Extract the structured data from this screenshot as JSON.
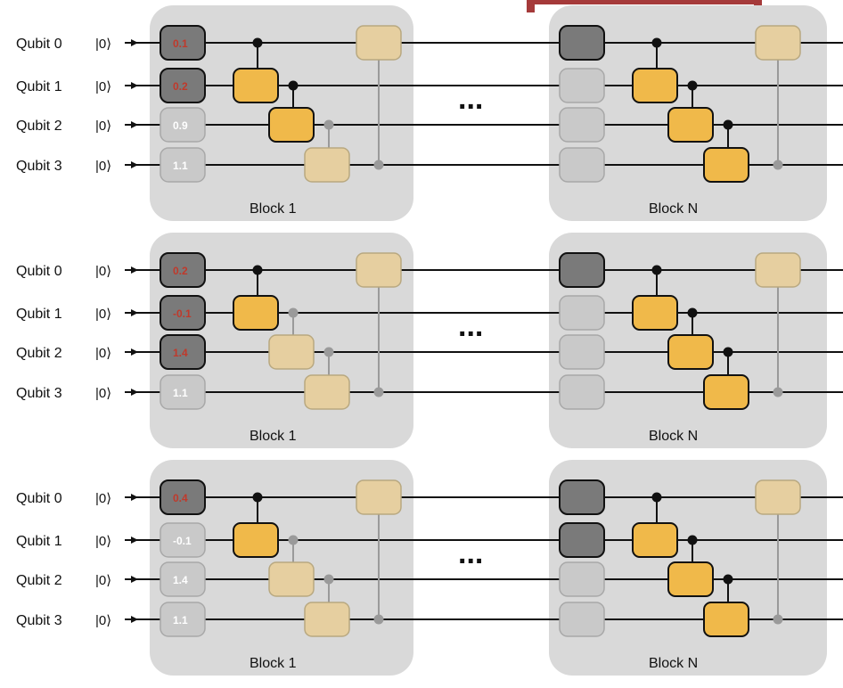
{
  "qubit_labels": [
    "Qubit 0",
    "Qubit 1",
    "Qubit 2",
    "Qubit 3"
  ],
  "initial_state": "|0⟩",
  "ellipsis": "...",
  "colors": {
    "panel": "#d9d9d9",
    "rot_active": "#7a7a7a",
    "rot_inactive": "#c9c9c9",
    "param_active_text": "#c0392b",
    "param_inactive_text": "#ffffff",
    "cz_active": "#f0b94a",
    "cz_inactive": "#e6cfa0",
    "wire": "#111111",
    "wire_inactive": "#9a9a9a",
    "top_bracket": "#a53a3a"
  },
  "circuits": [
    {
      "block1": {
        "label": "Block 1",
        "params": [
          "0.1",
          "0.2",
          "0.9",
          "1.1"
        ],
        "rot_active": [
          true,
          true,
          false,
          false
        ],
        "cz_active": [
          true,
          true,
          false
        ],
        "long_cz_active": false
      },
      "blockN": {
        "label": "Block N",
        "rot_active": [
          true,
          false,
          false,
          false
        ],
        "cz_active": [
          true,
          true,
          true
        ],
        "long_cz_active": false
      }
    },
    {
      "block1": {
        "label": "Block 1",
        "params": [
          "0.2",
          "-0.1",
          "1.4",
          "1.1"
        ],
        "rot_active": [
          true,
          true,
          true,
          false
        ],
        "cz_active": [
          true,
          false,
          false
        ],
        "long_cz_active": false
      },
      "blockN": {
        "label": "Block N",
        "rot_active": [
          true,
          false,
          false,
          false
        ],
        "cz_active": [
          true,
          true,
          true
        ],
        "long_cz_active": false
      }
    },
    {
      "block1": {
        "label": "Block 1",
        "params": [
          "0.4",
          "-0.1",
          "1.4",
          "1.1"
        ],
        "rot_active": [
          true,
          false,
          false,
          false
        ],
        "cz_active": [
          true,
          false,
          false
        ],
        "long_cz_active": false
      },
      "blockN": {
        "label": "Block N",
        "rot_active": [
          true,
          true,
          false,
          false
        ],
        "cz_active": [
          true,
          true,
          true
        ],
        "long_cz_active": false
      }
    }
  ]
}
